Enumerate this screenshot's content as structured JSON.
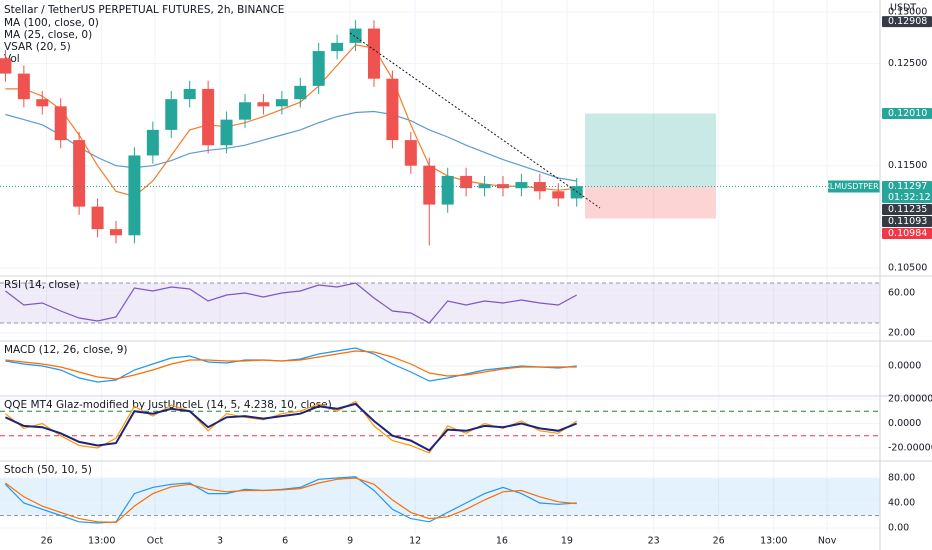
{
  "chart_data": [
    {
      "type": "candlestick",
      "title": "Stellar / TetherUS PERPETUAL FUTURES, 2h, BINANCE",
      "indicators": [
        "MA (100, close, 0)",
        "MA (25, close, 0)",
        "VSAR (20, 5)",
        "Vol"
      ],
      "unit": "USDT",
      "symbol": "XLMUSDTPERP",
      "up_color": "#26a69a",
      "down_color": "#ef5350",
      "x": [
        -6.9,
        -6.05,
        -5.2,
        -4.35,
        -3.5,
        -2.65,
        -1.8,
        -0.95,
        -0.1,
        0.75,
        1.6,
        2.45,
        3.3,
        4.15,
        5.0,
        5.85,
        6.7,
        7.55,
        8.4,
        9.25,
        10.1,
        10.95,
        11.8,
        12.65,
        13.5,
        14.35,
        15.2,
        16.05,
        16.9,
        17.75,
        18.6,
        19.45
      ],
      "open": [
        0.1255,
        0.124,
        0.1215,
        0.1208,
        0.1175,
        0.111,
        0.1088,
        0.1082,
        0.116,
        0.1185,
        0.1215,
        0.1225,
        0.117,
        0.1195,
        0.1212,
        0.1208,
        0.1215,
        0.1228,
        0.1262,
        0.127,
        0.1284,
        0.1235,
        0.1175,
        0.115,
        0.1112,
        0.114,
        0.1128,
        0.1132,
        0.1128,
        0.1134,
        0.1125,
        0.1118
      ],
      "high": [
        0.1263,
        0.1248,
        0.1223,
        0.1216,
        0.1183,
        0.1118,
        0.1096,
        0.1168,
        0.1193,
        0.1223,
        0.1233,
        0.1233,
        0.1203,
        0.122,
        0.122,
        0.1223,
        0.1236,
        0.127,
        0.1278,
        0.1292,
        0.1292,
        0.1243,
        0.1183,
        0.1158,
        0.1148,
        0.1148,
        0.114,
        0.114,
        0.1142,
        0.1142,
        0.1133,
        0.1138
      ],
      "low": [
        0.1232,
        0.1207,
        0.12,
        0.1167,
        0.1102,
        0.108,
        0.1074,
        0.1074,
        0.1152,
        0.1177,
        0.1207,
        0.1162,
        0.1162,
        0.1187,
        0.12,
        0.12,
        0.1207,
        0.122,
        0.1254,
        0.1262,
        0.1227,
        0.1167,
        0.1142,
        0.1072,
        0.1104,
        0.112,
        0.112,
        0.112,
        0.112,
        0.1117,
        0.111,
        0.111
      ],
      "close": [
        0.124,
        0.1215,
        0.1208,
        0.1175,
        0.111,
        0.1088,
        0.1082,
        0.116,
        0.1185,
        0.1215,
        0.1225,
        0.117,
        0.1195,
        0.1212,
        0.1208,
        0.1215,
        0.1228,
        0.1262,
        0.127,
        0.1284,
        0.1235,
        0.1175,
        0.115,
        0.1112,
        0.114,
        0.1128,
        0.1132,
        0.1128,
        0.1134,
        0.1125,
        0.1118,
        0.113
      ],
      "series": [
        {
          "color": "#5b9bd5",
          "values": [
            0.12,
            0.1195,
            0.119,
            0.118,
            0.1168,
            0.1158,
            0.115,
            0.1148,
            0.115,
            0.1155,
            0.1162,
            0.1165,
            0.1167,
            0.117,
            0.1175,
            0.118,
            0.1185,
            0.1192,
            0.1198,
            0.1202,
            0.1203,
            0.12,
            0.1194,
            0.1185,
            0.1178,
            0.117,
            0.1163,
            0.1156,
            0.115,
            0.1144,
            0.1138,
            0.1135
          ]
        },
        {
          "color": "#f57c2a",
          "values": [
            0.1225,
            0.1225,
            0.1218,
            0.1205,
            0.118,
            0.115,
            0.1125,
            0.112,
            0.1135,
            0.116,
            0.1185,
            0.119,
            0.1188,
            0.1192,
            0.1198,
            0.1205,
            0.1212,
            0.1228,
            0.1248,
            0.1268,
            0.1265,
            0.1235,
            0.119,
            0.115,
            0.114,
            0.1135,
            0.1132,
            0.113,
            0.113,
            0.1128,
            0.1126,
            0.1128
          ]
        }
      ],
      "xlim": [
        -7.15,
        33.44
      ],
      "xticks": [
        {
          "value": -5,
          "label": "26"
        },
        {
          "value": -2.46,
          "label": "13:00"
        },
        {
          "value": 0,
          "label": "Oct"
        },
        3,
        6,
        9,
        12,
        16,
        19,
        23,
        26,
        {
          "value": 28.54,
          "label": "13:00"
        },
        {
          "value": 31,
          "label": "Nov"
        }
      ],
      "ylim": [
        0.10432,
        0.13119
      ],
      "yticks": [
        {
          "value": 0.105,
          "label": "0.10500"
        },
        {
          "value": 0.115,
          "label": "0.11500"
        },
        {
          "value": 0.125,
          "label": "0.12500"
        },
        {
          "value": 0.13,
          "label": "0.13000"
        }
      ],
      "price_labels": [
        {
          "value": 0.12908,
          "label": "0.12908",
          "color": "#363a45"
        },
        {
          "value": 0.1201,
          "label": "0.12010",
          "color": "#26a69a"
        },
        {
          "value": 0.11297,
          "label": "0.11297",
          "color": "#26a69a",
          "countdown": "01:32:12"
        },
        {
          "value": 0.11235,
          "label": "0.11235",
          "color": "#363a45"
        },
        {
          "value": 0.11093,
          "label": "0.11093",
          "color": "#363a45"
        },
        {
          "value": 0.10984,
          "label": "0.10984",
          "color": "#f23645"
        }
      ]
    },
    {
      "type": "line",
      "title": "RSI (14, close)",
      "band": [
        30,
        70
      ],
      "band_color": "#7e57c2",
      "series": [
        {
          "color": "#7e57c2",
          "values": [
            62,
            48,
            50,
            42,
            35,
            32,
            36,
            65,
            62,
            66,
            64,
            52,
            58,
            60,
            56,
            60,
            62,
            68,
            66,
            70,
            55,
            42,
            40,
            30,
            52,
            48,
            52,
            50,
            53,
            50,
            48,
            58
          ]
        }
      ],
      "ylim": [
        13,
        76
      ],
      "yticks": [
        {
          "value": 20,
          "label": "20.00"
        },
        {
          "value": 60,
          "label": "60.00"
        }
      ]
    },
    {
      "type": "line",
      "title": "MACD (12, 26, close, 9)",
      "series": [
        {
          "color": "#2196f3",
          "values": [
            0.0005,
            0.0002,
            0,
            -0.0004,
            -0.0012,
            -0.0016,
            -0.0014,
            -0.0004,
            0.0002,
            0.0008,
            0.001,
            0.0004,
            0.0003,
            0.0006,
            0.0006,
            0.0005,
            0.0007,
            0.0012,
            0.0015,
            0.0018,
            0.0012,
            0.0002,
            -0.0006,
            -0.0015,
            -0.0012,
            -0.0008,
            -0.0004,
            -0.0002,
            0,
            -0.0001,
            -0.0002,
            0
          ]
        },
        {
          "color": "#ff6d00",
          "values": [
            0.0006,
            0.0004,
            0.0002,
            -0.0001,
            -0.0006,
            -0.0011,
            -0.0013,
            -0.0009,
            -0.0004,
            0.0002,
            0.0006,
            0.0006,
            0.0005,
            0.0005,
            0.0006,
            0.0005,
            0.0006,
            0.0009,
            0.0012,
            0.0015,
            0.0014,
            0.0009,
            0.0002,
            -0.0007,
            -0.001,
            -0.0009,
            -0.0006,
            -0.0003,
            -0.0001,
            -0.0001,
            -0.0001,
            -0.0001
          ]
        }
      ],
      "ylim": [
        -0.0029,
        0.0024
      ],
      "yticks": [
        {
          "value": 0,
          "label": "0.0000"
        }
      ]
    },
    {
      "type": "line",
      "title": "QQE MT4 Glaz-modified by JustUncleL (14, 5, 4.238, 10, close)",
      "levels": [
        {
          "value": 10,
          "color": "#2e7d32"
        },
        {
          "value": 0,
          "color": "#787b86"
        },
        {
          "value": -10,
          "color": "#e53935"
        }
      ],
      "series": [
        {
          "color": "#ff9800",
          "values": [
            8,
            -4,
            0,
            -10,
            -18,
            -20,
            -12,
            14,
            6,
            15,
            10,
            -6,
            8,
            5,
            3,
            8,
            10,
            16,
            10,
            18,
            -2,
            -14,
            -18,
            -24,
            -2,
            -8,
            0,
            -4,
            2,
            -6,
            -8,
            2
          ]
        },
        {
          "color": "#1a237e",
          "values": [
            5,
            -2,
            -3,
            -8,
            -15,
            -18,
            -16,
            10,
            8,
            12,
            10,
            -3,
            5,
            6,
            4,
            6,
            8,
            14,
            12,
            16,
            2,
            -10,
            -14,
            -22,
            -5,
            -6,
            -2,
            -3,
            0,
            -4,
            -6,
            0
          ]
        }
      ],
      "ylim": [
        -29.8,
        21.6
      ],
      "yticks": [
        {
          "value": -20,
          "label": "-20.00000"
        },
        {
          "value": 0,
          "label": "0.0000"
        },
        {
          "value": 20,
          "label": "20.00000"
        }
      ]
    },
    {
      "type": "line",
      "title": "Stoch (50, 10, 5)",
      "band": [
        20,
        80
      ],
      "band_color": "#2196f3",
      "series": [
        {
          "color": "#2196f3",
          "values": [
            70,
            40,
            30,
            20,
            10,
            8,
            10,
            55,
            65,
            70,
            72,
            55,
            55,
            62,
            60,
            62,
            65,
            78,
            80,
            82,
            60,
            30,
            15,
            10,
            25,
            40,
            55,
            65,
            55,
            40,
            38,
            40
          ]
        },
        {
          "color": "#ff6d00",
          "values": [
            72,
            50,
            35,
            25,
            15,
            10,
            9,
            35,
            55,
            66,
            70,
            62,
            58,
            60,
            60,
            61,
            63,
            72,
            78,
            80,
            70,
            45,
            25,
            15,
            18,
            30,
            45,
            58,
            60,
            50,
            42,
            39
          ]
        }
      ],
      "ylim": [
        -8,
        105.6
      ],
      "yticks": [
        {
          "value": 0,
          "label": "0.00"
        },
        {
          "value": 40,
          "label": "40.00"
        },
        {
          "value": 80,
          "label": "80.00"
        }
      ]
    }
  ]
}
